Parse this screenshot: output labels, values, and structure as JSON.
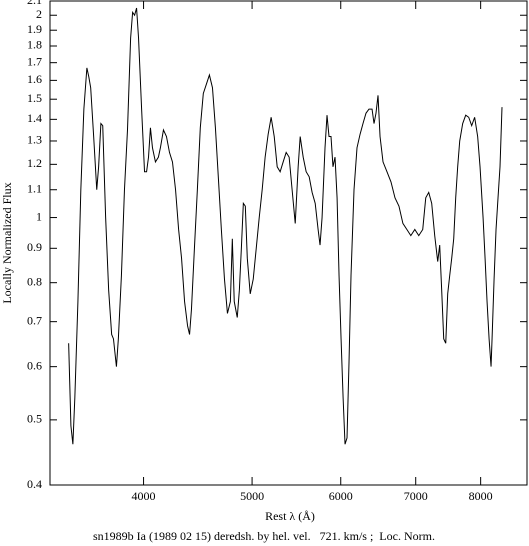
{
  "chart_data": {
    "type": "line",
    "x_label": "Rest λ (Å)",
    "y_label": "Locally Normalized Flux",
    "caption": "sn1989b Ia (1989 02 15) deredsh. by hel. vel.   721. km/s ;  Loc. Norm.",
    "xscale": "log",
    "yscale": "log",
    "color": "#000000",
    "xlim": [
      3300,
      8800
    ],
    "ylim": [
      0.4,
      2.1
    ],
    "xticks": [
      4000,
      5000,
      6000,
      7000,
      8000
    ],
    "yticks": [
      0.4,
      0.5,
      0.6,
      0.7,
      0.8,
      0.9,
      1,
      1.1,
      1.2,
      1.3,
      1.4,
      1.5,
      1.6,
      1.7,
      1.8,
      1.9,
      2,
      2.1
    ],
    "x": [
      3429,
      3445,
      3459,
      3473,
      3495,
      3516,
      3538,
      3560,
      3574,
      3588,
      3610,
      3633,
      3647,
      3664,
      3678,
      3700,
      3723,
      3746,
      3760,
      3783,
      3798,
      3822,
      3846,
      3870,
      3895,
      3911,
      3927,
      3943,
      3959,
      3984,
      4008,
      4025,
      4041,
      4057,
      4074,
      4099,
      4124,
      4141,
      4167,
      4193,
      4219,
      4245,
      4272,
      4299,
      4325,
      4352,
      4379,
      4397,
      4414,
      4441,
      4468,
      4495,
      4523,
      4552,
      4580,
      4609,
      4637,
      4666,
      4694,
      4724,
      4753,
      4782,
      4801,
      4820,
      4850,
      4871,
      4891,
      4911,
      4931,
      4951,
      4981,
      5012,
      5043,
      5074,
      5105,
      5136,
      5168,
      5200,
      5233,
      5265,
      5297,
      5330,
      5363,
      5396,
      5429,
      5464,
      5497,
      5520,
      5554,
      5588,
      5623,
      5657,
      5693,
      5727,
      5750,
      5774,
      5809,
      5833,
      5857,
      5881,
      5905,
      5930,
      5955,
      5979,
      6004,
      6029,
      6053,
      6078,
      6103,
      6128,
      6166,
      6204,
      6243,
      6281,
      6320,
      6359,
      6399,
      6425,
      6451,
      6478,
      6505,
      6545,
      6598,
      6653,
      6708,
      6763,
      6818,
      6874,
      6930,
      6987,
      7044,
      7102,
      7146,
      7190,
      7234,
      7279,
      7324,
      7354,
      7384,
      7415,
      7446,
      7476,
      7507,
      7538,
      7569,
      7600,
      7631,
      7663,
      7710,
      7758,
      7806,
      7854,
      7902,
      7951,
      7990,
      8040,
      8073,
      8106,
      8140,
      8173,
      8190,
      8224,
      8257,
      8291,
      8325,
      8359
    ],
    "values": [
      0.65,
      0.49,
      0.46,
      0.54,
      0.75,
      1.1,
      1.45,
      1.67,
      1.62,
      1.56,
      1.32,
      1.1,
      1.19,
      1.38,
      1.37,
      1.0,
      0.78,
      0.67,
      0.66,
      0.6,
      0.66,
      0.82,
      1.1,
      1.35,
      1.85,
      2.02,
      2.0,
      2.05,
      1.85,
      1.45,
      1.17,
      1.17,
      1.23,
      1.36,
      1.27,
      1.21,
      1.23,
      1.27,
      1.35,
      1.32,
      1.25,
      1.21,
      1.1,
      0.96,
      0.87,
      0.75,
      0.69,
      0.67,
      0.73,
      0.9,
      1.1,
      1.36,
      1.53,
      1.58,
      1.63,
      1.56,
      1.36,
      1.14,
      0.96,
      0.81,
      0.72,
      0.75,
      0.93,
      0.75,
      0.71,
      0.78,
      0.9,
      1.05,
      1.04,
      0.87,
      0.77,
      0.81,
      0.9,
      1.0,
      1.1,
      1.23,
      1.33,
      1.41,
      1.32,
      1.19,
      1.17,
      1.21,
      1.25,
      1.23,
      1.1,
      0.98,
      1.19,
      1.32,
      1.23,
      1.17,
      1.15,
      1.09,
      1.05,
      0.96,
      0.91,
      1.0,
      1.27,
      1.42,
      1.32,
      1.32,
      1.19,
      1.23,
      1.07,
      0.82,
      0.66,
      0.54,
      0.46,
      0.47,
      0.61,
      0.82,
      1.1,
      1.27,
      1.33,
      1.38,
      1.43,
      1.45,
      1.45,
      1.38,
      1.43,
      1.52,
      1.32,
      1.21,
      1.17,
      1.13,
      1.07,
      1.04,
      0.98,
      0.96,
      0.94,
      0.96,
      0.94,
      0.96,
      1.07,
      1.09,
      1.05,
      0.94,
      0.86,
      0.91,
      0.78,
      0.66,
      0.65,
      0.77,
      0.82,
      0.87,
      0.93,
      1.07,
      1.19,
      1.3,
      1.38,
      1.42,
      1.41,
      1.37,
      1.41,
      1.32,
      1.19,
      1.0,
      0.87,
      0.75,
      0.66,
      0.6,
      0.66,
      0.81,
      0.96,
      1.07,
      1.19,
      1.46
    ]
  }
}
